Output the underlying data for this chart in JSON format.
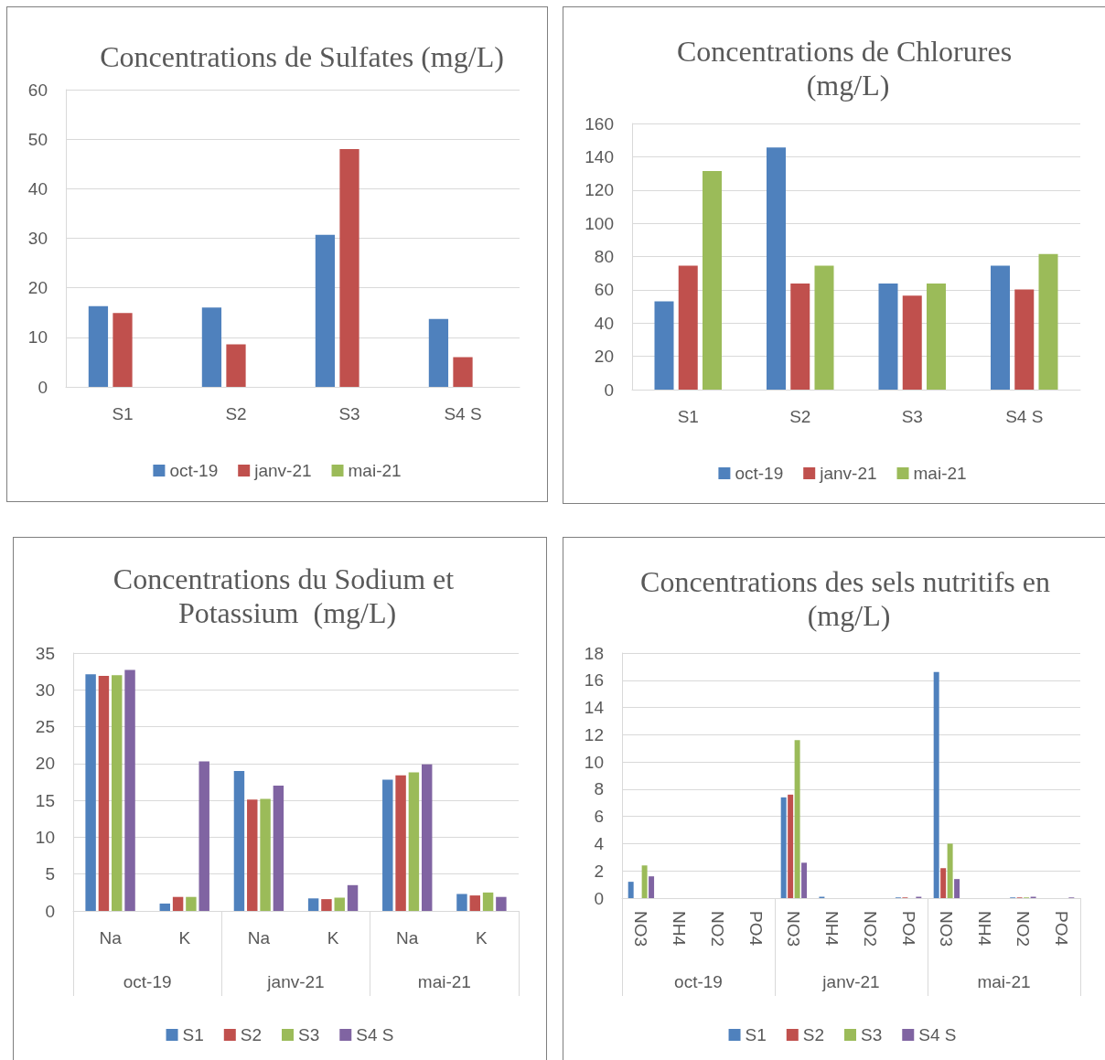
{
  "chart_data": [
    {
      "type": "bar",
      "title": "Concentrations de Sulfates (mg/L)",
      "categories": [
        "S1",
        "S2",
        "S3",
        "S4 S"
      ],
      "series": [
        {
          "name": "oct-19",
          "color": "#4f81bd",
          "values": [
            16.3,
            16.0,
            30.7,
            13.7
          ]
        },
        {
          "name": "janv-21",
          "color": "#c0504d",
          "values": [
            14.9,
            8.6,
            48.0,
            6.0
          ]
        },
        {
          "name": "mai-21",
          "color": "#9bbb59",
          "values": [
            null,
            null,
            null,
            null
          ]
        }
      ],
      "ylim": [
        0,
        60
      ],
      "yticks": [
        0,
        10,
        20,
        30,
        40,
        50,
        60
      ],
      "grid": "y",
      "legend": "bottom"
    },
    {
      "type": "bar",
      "title": "Concentrations de Chlorures (mg/L)",
      "categories": [
        "S1",
        "S2",
        "S3",
        "S4 S"
      ],
      "series": [
        {
          "name": "oct-19",
          "color": "#4f81bd",
          "values": [
            53.1,
            145.5,
            63.8,
            74.5
          ]
        },
        {
          "name": "janv-21",
          "color": "#c0504d",
          "values": [
            74.5,
            63.8,
            56.5,
            60.2
          ]
        },
        {
          "name": "mai-21",
          "color": "#9bbb59",
          "values": [
            131.4,
            74.5,
            63.8,
            81.5
          ]
        }
      ],
      "ylim": [
        0,
        160
      ],
      "yticks": [
        0,
        20,
        40,
        60,
        80,
        100,
        120,
        140,
        160
      ],
      "grid": "y",
      "legend": "bottom"
    },
    {
      "type": "bar",
      "title": "Concentrations du Sodium et Potassium  (mg/L)",
      "categories": [
        "Na",
        "K",
        "Na",
        "K",
        "Na",
        "K"
      ],
      "annotations": [
        "oct-19",
        "janv-21",
        "mai-21"
      ],
      "series": [
        {
          "name": "S1",
          "color": "#4f81bd",
          "values": [
            32.1,
            1.0,
            19.0,
            1.7,
            17.8,
            2.3
          ]
        },
        {
          "name": "S2",
          "color": "#c0504d",
          "values": [
            31.9,
            1.9,
            15.1,
            1.6,
            18.4,
            2.1
          ]
        },
        {
          "name": "S3",
          "color": "#9bbb59",
          "values": [
            32.0,
            1.9,
            15.2,
            1.8,
            18.8,
            2.5
          ]
        },
        {
          "name": "S4 S",
          "color": "#8064a2",
          "values": [
            32.7,
            20.3,
            17.0,
            3.5,
            19.9,
            1.9
          ]
        }
      ],
      "ylim": [
        0,
        35
      ],
      "yticks": [
        0,
        5,
        10,
        15,
        20,
        25,
        30,
        35
      ],
      "grid": "y",
      "legend": "bottom"
    },
    {
      "type": "bar",
      "title": "Concentrations des sels nutritifs en (mg/L)",
      "categories": [
        "NO3",
        "NH4",
        "NO2",
        "PO4",
        "NO3",
        "NH4",
        "NO2",
        "PO4",
        "NO3",
        "NH4",
        "NO2",
        "PO4"
      ],
      "annotations": [
        "oct-19",
        "janv-21",
        "mai-21"
      ],
      "series": [
        {
          "name": "S1",
          "color": "#4f81bd",
          "values": [
            1.2,
            null,
            null,
            null,
            7.4,
            0.1,
            null,
            0.05,
            16.6,
            null,
            0.05,
            null
          ]
        },
        {
          "name": "S2",
          "color": "#c0504d",
          "values": [
            null,
            null,
            null,
            null,
            7.6,
            null,
            null,
            0.05,
            2.2,
            null,
            0.05,
            null
          ]
        },
        {
          "name": "S3",
          "color": "#9bbb59",
          "values": [
            2.4,
            null,
            null,
            null,
            11.6,
            null,
            null,
            null,
            4.0,
            null,
            0.05,
            null
          ]
        },
        {
          "name": "S4 S",
          "color": "#8064a2",
          "values": [
            1.6,
            null,
            null,
            null,
            2.6,
            null,
            null,
            0.1,
            1.4,
            null,
            0.1,
            0.05
          ]
        }
      ],
      "ylim": [
        0,
        18
      ],
      "yticks": [
        0,
        2,
        4,
        6,
        8,
        10,
        12,
        14,
        16,
        18
      ],
      "grid": "y",
      "legend": "bottom"
    }
  ]
}
